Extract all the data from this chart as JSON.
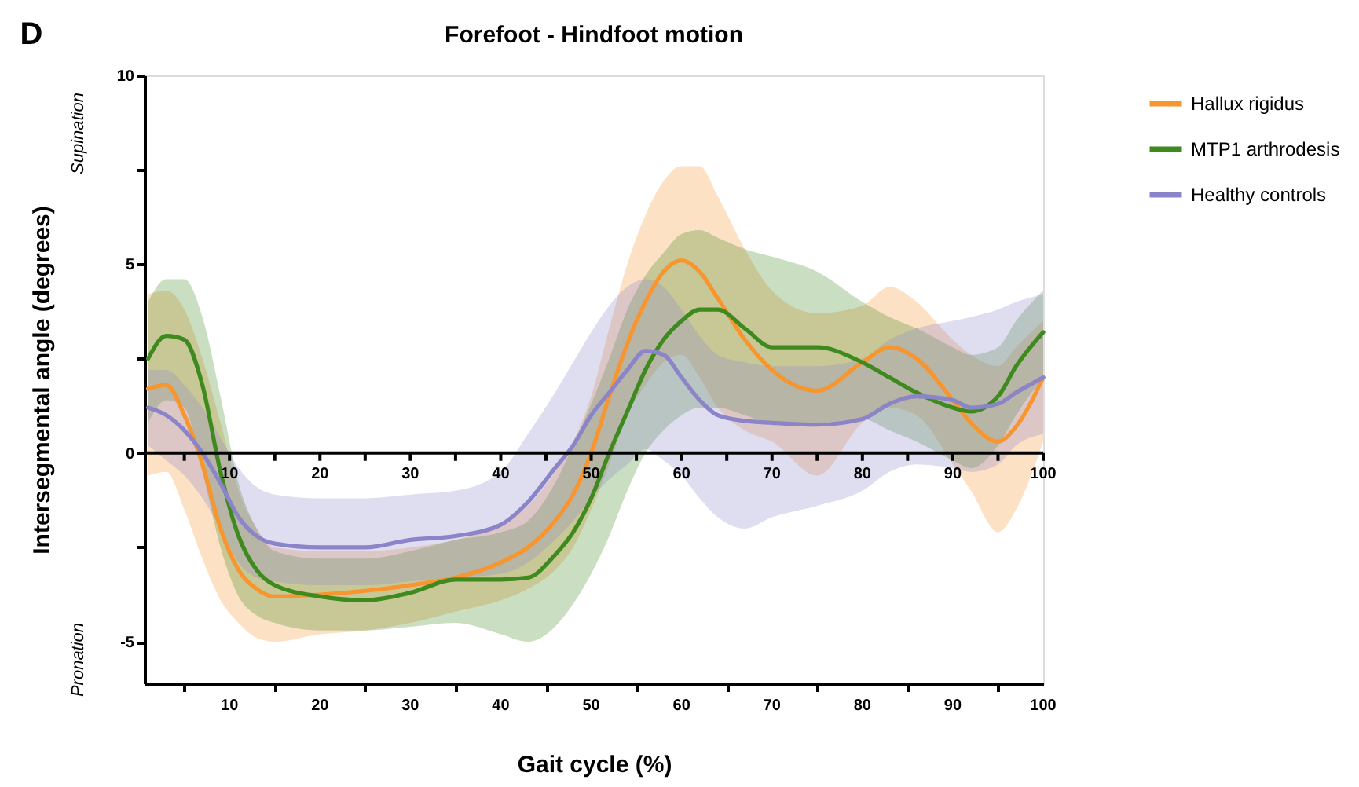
{
  "chart_data": {
    "type": "line",
    "title": "Forefoot - Hindfoot motion",
    "xlabel": "Gait cycle (%)",
    "ylabel": "Intersegmental angle (degrees)",
    "annotations": [
      "D",
      "Supination",
      "Pronation"
    ],
    "x": [
      1,
      3,
      5,
      7,
      9,
      11,
      13,
      15,
      20,
      25,
      30,
      35,
      40,
      43,
      46,
      48,
      50,
      52,
      54,
      56,
      58,
      60,
      62,
      64,
      67,
      70,
      75,
      80,
      83,
      86,
      90,
      92,
      95,
      97,
      100
    ],
    "series": [
      {
        "name": "Hallux rigidus",
        "color": "#f7952e",
        "values": [
          1.7,
          1.8,
          1.0,
          -0.3,
          -2.0,
          -3.1,
          -3.6,
          -3.8,
          -3.75,
          -3.65,
          -3.5,
          -3.3,
          -2.9,
          -2.5,
          -1.8,
          -1.1,
          0.0,
          1.5,
          2.9,
          4.0,
          4.8,
          5.1,
          4.8,
          4.1,
          3.0,
          2.2,
          1.65,
          2.4,
          2.8,
          2.5,
          1.4,
          0.8,
          0.3,
          0.7,
          2.0
        ],
        "upper": [
          4.2,
          4.3,
          3.8,
          2.5,
          0.8,
          -1.0,
          -2.0,
          -2.5,
          -2.6,
          -2.6,
          -2.5,
          -2.3,
          -1.9,
          -1.4,
          -0.5,
          0.3,
          1.5,
          3.3,
          5.0,
          6.3,
          7.2,
          7.6,
          7.6,
          6.8,
          5.4,
          4.3,
          3.7,
          3.9,
          4.4,
          4.0,
          3.0,
          2.6,
          2.3,
          2.8,
          3.5
        ],
        "lower": [
          -0.6,
          -0.5,
          -1.5,
          -2.8,
          -3.9,
          -4.5,
          -4.9,
          -5.0,
          -4.8,
          -4.7,
          -4.5,
          -4.2,
          -3.9,
          -3.6,
          -3.1,
          -2.5,
          -1.5,
          -0.3,
          1.0,
          1.8,
          2.4,
          2.6,
          2.0,
          1.2,
          0.6,
          0.3,
          -0.6,
          0.8,
          1.2,
          1.0,
          -0.3,
          -1.0,
          -2.1,
          -1.5,
          0.3
        ]
      },
      {
        "name": "MTP1 arthrodesis",
        "color": "#3f8a1f",
        "values": [
          2.5,
          3.1,
          3.0,
          1.8,
          -0.5,
          -2.2,
          -3.1,
          -3.5,
          -3.8,
          -3.9,
          -3.7,
          -3.35,
          -3.35,
          -3.3,
          -2.7,
          -2.1,
          -1.2,
          0.0,
          1.1,
          2.2,
          3.0,
          3.5,
          3.8,
          3.8,
          3.3,
          2.8,
          2.8,
          2.4,
          2.0,
          1.6,
          1.2,
          1.1,
          1.5,
          2.3,
          3.2
        ],
        "upper": [
          4.0,
          4.6,
          4.6,
          3.6,
          1.5,
          -0.8,
          -2.0,
          -2.6,
          -2.8,
          -2.8,
          -2.6,
          -2.3,
          -2.1,
          -1.8,
          -0.8,
          0.2,
          1.3,
          2.5,
          3.8,
          4.7,
          5.3,
          5.8,
          5.9,
          5.7,
          5.4,
          5.2,
          4.8,
          4.0,
          3.6,
          3.3,
          2.8,
          2.6,
          2.8,
          3.5,
          4.3
        ],
        "lower": [
          0.8,
          1.4,
          1.2,
          -0.5,
          -2.5,
          -3.8,
          -4.3,
          -4.5,
          -4.7,
          -4.7,
          -4.6,
          -4.5,
          -4.8,
          -5.0,
          -4.6,
          -4.0,
          -3.2,
          -2.2,
          -1.0,
          0.0,
          0.6,
          1.0,
          1.2,
          1.2,
          1.0,
          0.8,
          0.8,
          0.9,
          0.6,
          0.3,
          -0.2,
          -0.4,
          0.2,
          1.0,
          2.0
        ]
      },
      {
        "name": "Healthy controls",
        "color": "#8c84c8",
        "values": [
          1.2,
          1.0,
          0.6,
          0.0,
          -0.8,
          -1.7,
          -2.2,
          -2.4,
          -2.5,
          -2.5,
          -2.3,
          -2.2,
          -1.9,
          -1.3,
          -0.4,
          0.2,
          1.0,
          1.6,
          2.2,
          2.7,
          2.6,
          2.0,
          1.4,
          1.0,
          0.85,
          0.8,
          0.75,
          0.9,
          1.3,
          1.5,
          1.4,
          1.2,
          1.3,
          1.6,
          2.0
        ],
        "upper": [
          2.2,
          2.2,
          1.8,
          1.2,
          0.4,
          -0.4,
          -0.9,
          -1.1,
          -1.2,
          -1.2,
          -1.1,
          -1.0,
          -0.5,
          0.5,
          1.6,
          2.4,
          3.2,
          3.9,
          4.4,
          4.6,
          4.4,
          3.8,
          3.1,
          2.6,
          2.4,
          2.3,
          2.3,
          2.5,
          3.0,
          3.3,
          3.5,
          3.6,
          3.8,
          4.0,
          4.2
        ],
        "lower": [
          0.2,
          -0.2,
          -0.6,
          -1.2,
          -2.0,
          -2.9,
          -3.3,
          -3.4,
          -3.5,
          -3.5,
          -3.4,
          -3.3,
          -3.2,
          -2.9,
          -2.3,
          -1.8,
          -1.2,
          -0.7,
          -0.3,
          0.1,
          -0.2,
          -0.6,
          -1.2,
          -1.7,
          -2.0,
          -1.7,
          -1.4,
          -1.0,
          -0.5,
          -0.3,
          -0.4,
          -0.5,
          -0.3,
          0.2,
          0.5
        ]
      }
    ],
    "xlim": [
      0.6,
      100
    ],
    "xticks": [
      {
        "value": 5,
        "label": null
      },
      10,
      {
        "value": 15,
        "label": null
      },
      20,
      {
        "value": 25,
        "label": null
      },
      30,
      {
        "value": 35,
        "label": null
      },
      40,
      {
        "value": 45,
        "label": null
      },
      50,
      {
        "value": 55,
        "label": null
      },
      60,
      {
        "value": 65,
        "label": null
      },
      70,
      {
        "value": 75,
        "label": null
      },
      80,
      {
        "value": 85,
        "label": null
      },
      90,
      {
        "value": 95,
        "label": null
      },
      100
    ],
    "x2lim": [
      0.6,
      100
    ],
    "x2ticks": [
      {
        "value": 5,
        "label": null
      },
      10,
      {
        "value": 15,
        "label": null
      },
      20,
      {
        "value": 25,
        "label": null
      },
      30,
      {
        "value": 35,
        "label": null
      },
      40,
      {
        "value": 45,
        "label": null
      },
      50,
      {
        "value": 55,
        "label": null
      },
      60,
      {
        "value": 65,
        "label": null
      },
      70,
      {
        "value": 75,
        "label": null
      },
      80,
      {
        "value": 85,
        "label": null
      },
      90,
      {
        "value": 95,
        "label": null
      },
      100
    ],
    "ylim": [
      -6.1,
      10
    ],
    "yticks": [
      -5,
      {
        "value": -2.5,
        "label": null
      },
      0,
      {
        "value": 2.5,
        "label": null
      },
      5,
      {
        "value": 7.5,
        "label": null
      },
      10
    ],
    "grid": false,
    "legend": "top right",
    "marker": "none"
  }
}
